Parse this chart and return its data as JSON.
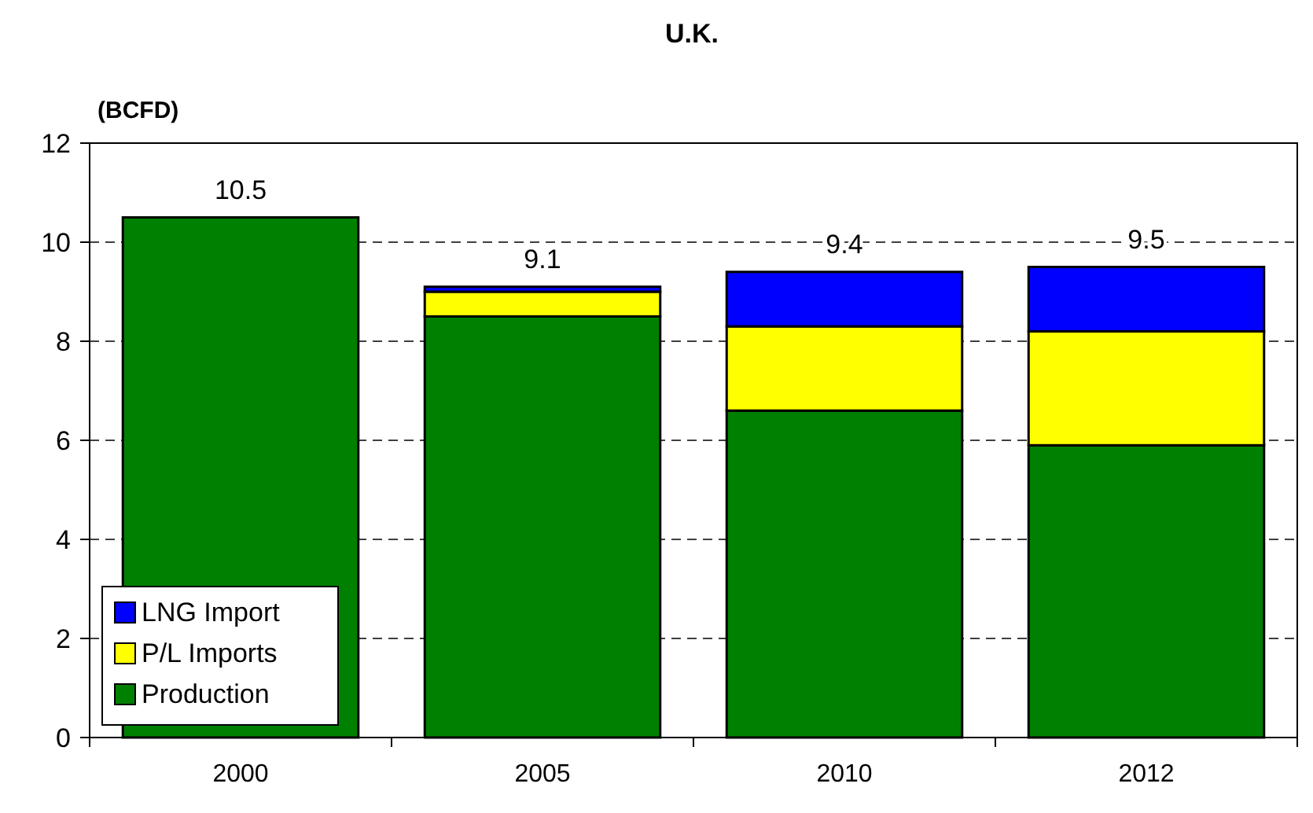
{
  "chart_data": {
    "type": "bar",
    "title": "U.K.",
    "ylabel": "(BCFD)",
    "categories": [
      "2000",
      "2005",
      "2010",
      "2012"
    ],
    "stacked": true,
    "series": [
      {
        "name": "Production",
        "color": "#008000",
        "values": [
          10.5,
          8.5,
          6.6,
          5.9
        ]
      },
      {
        "name": "P/L Imports",
        "color": "#ffff00",
        "values": [
          null,
          0.5,
          1.7,
          2.3
        ]
      },
      {
        "name": "LNG Import",
        "color": "#0000ff",
        "values": [
          null,
          0.1,
          1.1,
          1.3
        ]
      }
    ],
    "totals": [
      "10.5",
      "9.1",
      "9.4",
      "9.5"
    ],
    "ylim": [
      0,
      12
    ],
    "yticks": [
      0,
      2,
      4,
      6,
      8,
      10,
      12
    ],
    "grid": "y",
    "legend": "bottom left"
  }
}
